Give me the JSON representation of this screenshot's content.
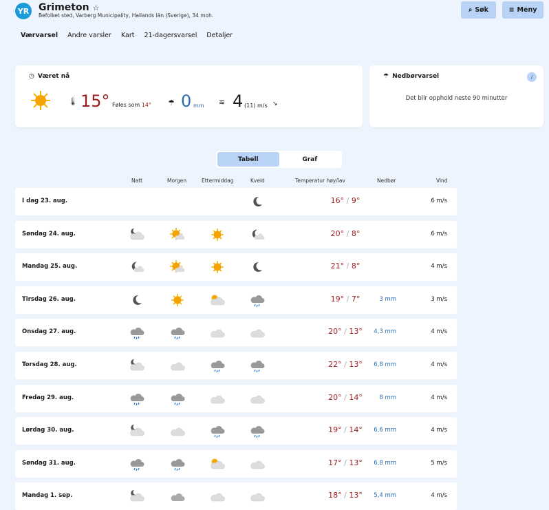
{
  "header": {
    "logo": "YR",
    "title": "Grimeton",
    "subtitle": "Befolket sted, Varberg Municipality, Hallands län (Sverige), 34 moh.",
    "search_label": "Søk",
    "menu_label": "Meny"
  },
  "nav": [
    "Værvarsel",
    "Andre varsler",
    "Kart",
    "21-dagersvarsel",
    "Detaljer"
  ],
  "now": {
    "title": "Været nå",
    "icon": "sun",
    "temp": "15°",
    "feels_label": "Føles som",
    "feels": "14°",
    "precip": "0",
    "precip_unit": "mm",
    "wind": "4",
    "gust": "(11)",
    "wind_unit": "m/s"
  },
  "nowcast": {
    "title": "Nedbørvarsel",
    "text": "Det blir opphold neste 90 minutter"
  },
  "view_toggle": {
    "table": "Tabell",
    "graph": "Graf",
    "selected": "Tabell"
  },
  "columns": {
    "night": "Natt",
    "morning": "Morgen",
    "afternoon": "Ettermiddag",
    "evening": "Kveld",
    "temp": "Temperatur høy/lav",
    "precip": "Nedbør",
    "wind": "Vind"
  },
  "colors": {
    "temp": "#9b1c1c",
    "precip": "#2b6cb0",
    "accent": "#b8d3f6"
  },
  "days": [
    {
      "date": "I dag 23. aug.",
      "icons": [
        "",
        "",
        "",
        "moon"
      ],
      "high": "16°",
      "low": "9°",
      "precip": "",
      "wind": "6 m/s"
    },
    {
      "date": "Søndag 24. aug.",
      "icons": [
        "cloud-night",
        "partly-sunny",
        "sun",
        "fair-night"
      ],
      "high": "20°",
      "low": "8°",
      "precip": "",
      "wind": "6 m/s"
    },
    {
      "date": "Mandag 25. aug.",
      "icons": [
        "fair-night",
        "partly-sunny",
        "sun",
        "moon"
      ],
      "high": "21°",
      "low": "8°",
      "precip": "",
      "wind": "4 m/s"
    },
    {
      "date": "Tirsdag 26. aug.",
      "icons": [
        "moon",
        "sun",
        "cloud-day",
        "rain"
      ],
      "high": "19°",
      "low": "7°",
      "precip": "3 mm",
      "wind": "3 m/s"
    },
    {
      "date": "Onsdag 27. aug.",
      "icons": [
        "rain",
        "rain",
        "cloud",
        "cloud"
      ],
      "high": "20°",
      "low": "13°",
      "precip": "4,3 mm",
      "wind": "4 m/s"
    },
    {
      "date": "Torsdag 28. aug.",
      "icons": [
        "cloud-night",
        "cloud",
        "rain",
        "rain"
      ],
      "high": "22°",
      "low": "13°",
      "precip": "6,8 mm",
      "wind": "4 m/s"
    },
    {
      "date": "Fredag 29. aug.",
      "icons": [
        "rain",
        "rain",
        "cloud",
        "cloud"
      ],
      "high": "20°",
      "low": "14°",
      "precip": "8 mm",
      "wind": "4 m/s"
    },
    {
      "date": "Lørdag 30. aug.",
      "icons": [
        "cloud-night",
        "cloud",
        "rain",
        "rain"
      ],
      "high": "19°",
      "low": "14°",
      "precip": "6,6 mm",
      "wind": "4 m/s"
    },
    {
      "date": "Søndag 31. aug.",
      "icons": [
        "rain",
        "rain",
        "cloud-day",
        "cloud"
      ],
      "high": "17°",
      "low": "13°",
      "precip": "6,8 mm",
      "wind": "5 m/s"
    },
    {
      "date": "Mandag 1. sep.",
      "icons": [
        "cloud-night",
        "cloud-dark",
        "cloud",
        "cloud"
      ],
      "high": "18°",
      "low": "13°",
      "precip": "5,4 mm",
      "wind": "4 m/s"
    }
  ]
}
